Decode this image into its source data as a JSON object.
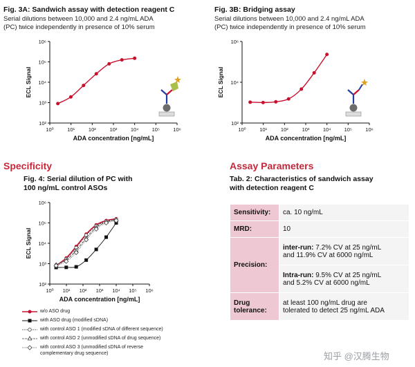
{
  "fig3a": {
    "title": "Fig. 3A: Sandwich assay with detection reagent C",
    "subtitle_line1": "Serial dilutions between 10,000 and 2.4 ng/mL ADA",
    "subtitle_line2": "(PC) twice independently in presence of 10% serum"
  },
  "fig3b": {
    "title": "Fig. 3B: Bridging assay",
    "subtitle_line1": "Serial dilutions between 10,000 and 2.4 ng/mL ADA",
    "subtitle_line2": "(PC) twice independently in presence of 10% serum"
  },
  "specificity": {
    "heading": "Specificity",
    "fig_title_line1": "Fig. 4: Serial dilution of PC with",
    "fig_title_line2": "100 ng/mL control ASOs"
  },
  "assay": {
    "heading": "Assay Parameters",
    "tab_title_line1": "Tab. 2: Characteristics of sandwich assay",
    "tab_title_line2": "with detection reagent C",
    "rows": {
      "sensitivity_label": "Sensitivity:",
      "sensitivity_value": "ca. 10 ng/mL",
      "mrd_label": "MRD:",
      "mrd_value": "10",
      "precision_label": "Precision:",
      "inter_label": "inter-run:",
      "inter_text1": " 7.2% CV at 25 ng/mL",
      "inter_text2": "and 11.9% CV at 6000 ng/mL",
      "intra_label": "Intra-run:",
      "intra_text1": " 9.5% CV at 25 ng/mL",
      "intra_text2": "and 5.2% CV at 6000 ng/mL",
      "drug_label1": "Drug",
      "drug_label2": "tolerance:",
      "drug_value1": "at least 100 ng/mL drug are",
      "drug_value2": "tolerated to detect 25 ng/mL ADA"
    }
  },
  "legend": {
    "items": [
      "w/o ASO drug",
      "with ASO drug (modified sDNA)",
      "with control ASO 1 (modified sDNA of different sequence)",
      "with control ASO 2 (unmodified sDNA of drug sequence)",
      "with control ASO 3 (unmodified sDNA of reverse",
      "complementary drug sequence)"
    ]
  },
  "watermark": "知乎 @汉腾生物",
  "colors": {
    "accent": "#c2273a",
    "series_red": "#c8102e",
    "label_bg": "#eec9d3"
  },
  "chart_data": [
    {
      "type": "scatter",
      "title": "Fig. 3A: Sandwich assay with detection reagent C",
      "xlabel": "ADA concentration [ng/mL]",
      "ylabel": "ECL Signal",
      "x_scale": "log",
      "y_scale": "log",
      "xlim": [
        1,
        1000000
      ],
      "ylim": [
        100,
        1000000
      ],
      "xticks": [
        "10⁰",
        "10¹",
        "10²",
        "10³",
        "10⁴",
        "10⁵",
        "10⁶"
      ],
      "yticks": [
        "10²",
        "10³",
        "10⁴",
        "10⁵",
        "10⁶"
      ],
      "series": [
        {
          "x": [
            2.4,
            9.8,
            39,
            156,
            625,
            2500,
            10000
          ],
          "y": [
            900,
            1900,
            7000,
            26000,
            80000,
            125000,
            150000
          ]
        }
      ]
    },
    {
      "type": "scatter",
      "title": "Fig. 3B: Bridging assay",
      "xlabel": "ADA concentration [ng/mL]",
      "ylabel": "ECL Signal",
      "x_scale": "log",
      "y_scale": "log",
      "xlim": [
        1,
        1000000
      ],
      "ylim": [
        100,
        10000000
      ],
      "xticks": [
        "10⁰",
        "10¹",
        "10²",
        "10³",
        "10⁴",
        "10⁵",
        "10⁶"
      ],
      "yticks": [
        "10²",
        "10⁴",
        "10⁶"
      ],
      "series": [
        {
          "x": [
            2.4,
            9.8,
            39,
            156,
            625,
            2500,
            10000
          ],
          "y": [
            1900,
            1800,
            2000,
            3000,
            12000,
            120000,
            1600000
          ]
        }
      ]
    },
    {
      "type": "scatter",
      "title": "Fig. 4: Serial dilution of PC with 100 ng/mL control ASOs",
      "xlabel": "ADA concentration [ng/mL]",
      "ylabel": "ECL Signal",
      "x_scale": "log",
      "y_scale": "log",
      "xlim": [
        1,
        1000000
      ],
      "ylim": [
        100,
        1000000
      ],
      "xticks": [
        "10⁰",
        "10¹",
        "10²",
        "10³",
        "10⁴",
        "10⁵",
        "10⁶"
      ],
      "yticks": [
        "10²",
        "10³",
        "10⁴",
        "10⁵",
        "10⁶"
      ],
      "series": [
        {
          "name": "w/o ASO drug",
          "color": "#c8102e",
          "marker": "circle",
          "x": [
            2.4,
            9.8,
            39,
            156,
            625,
            2500,
            10000
          ],
          "y": [
            800,
            1900,
            7000,
            28000,
            80000,
            130000,
            160000
          ]
        },
        {
          "name": "with ASO drug (modified sDNA)",
          "color": "#111111",
          "marker": "square",
          "x": [
            2.4,
            9.8,
            39,
            156,
            625,
            2500,
            10000
          ],
          "y": [
            650,
            660,
            700,
            1500,
            5000,
            20000,
            100000
          ]
        },
        {
          "name": "with control ASO 1 (modified sDNA of different sequence)",
          "color": "#444444",
          "marker": "open-circle",
          "x": [
            2.4,
            9.8,
            39,
            156,
            625,
            2500,
            10000
          ],
          "y": [
            850,
            1700,
            6000,
            25000,
            70000,
            120000,
            150000
          ]
        },
        {
          "name": "with control ASO 2 (unmodified sDNA of drug sequence)",
          "color": "#444444",
          "marker": "open-triangle",
          "x": [
            2.4,
            9.8,
            39,
            156,
            625,
            2500,
            10000
          ],
          "y": [
            900,
            1500,
            4500,
            18000,
            60000,
            110000,
            140000
          ]
        },
        {
          "name": "with control ASO 3 (unmodified sDNA of reverse complementary drug sequence)",
          "color": "#444444",
          "marker": "open-diamond",
          "x": [
            2.4,
            9.8,
            39,
            156,
            625,
            2500,
            10000
          ],
          "y": [
            800,
            1300,
            3500,
            15000,
            50000,
            100000,
            130000
          ]
        }
      ]
    }
  ]
}
